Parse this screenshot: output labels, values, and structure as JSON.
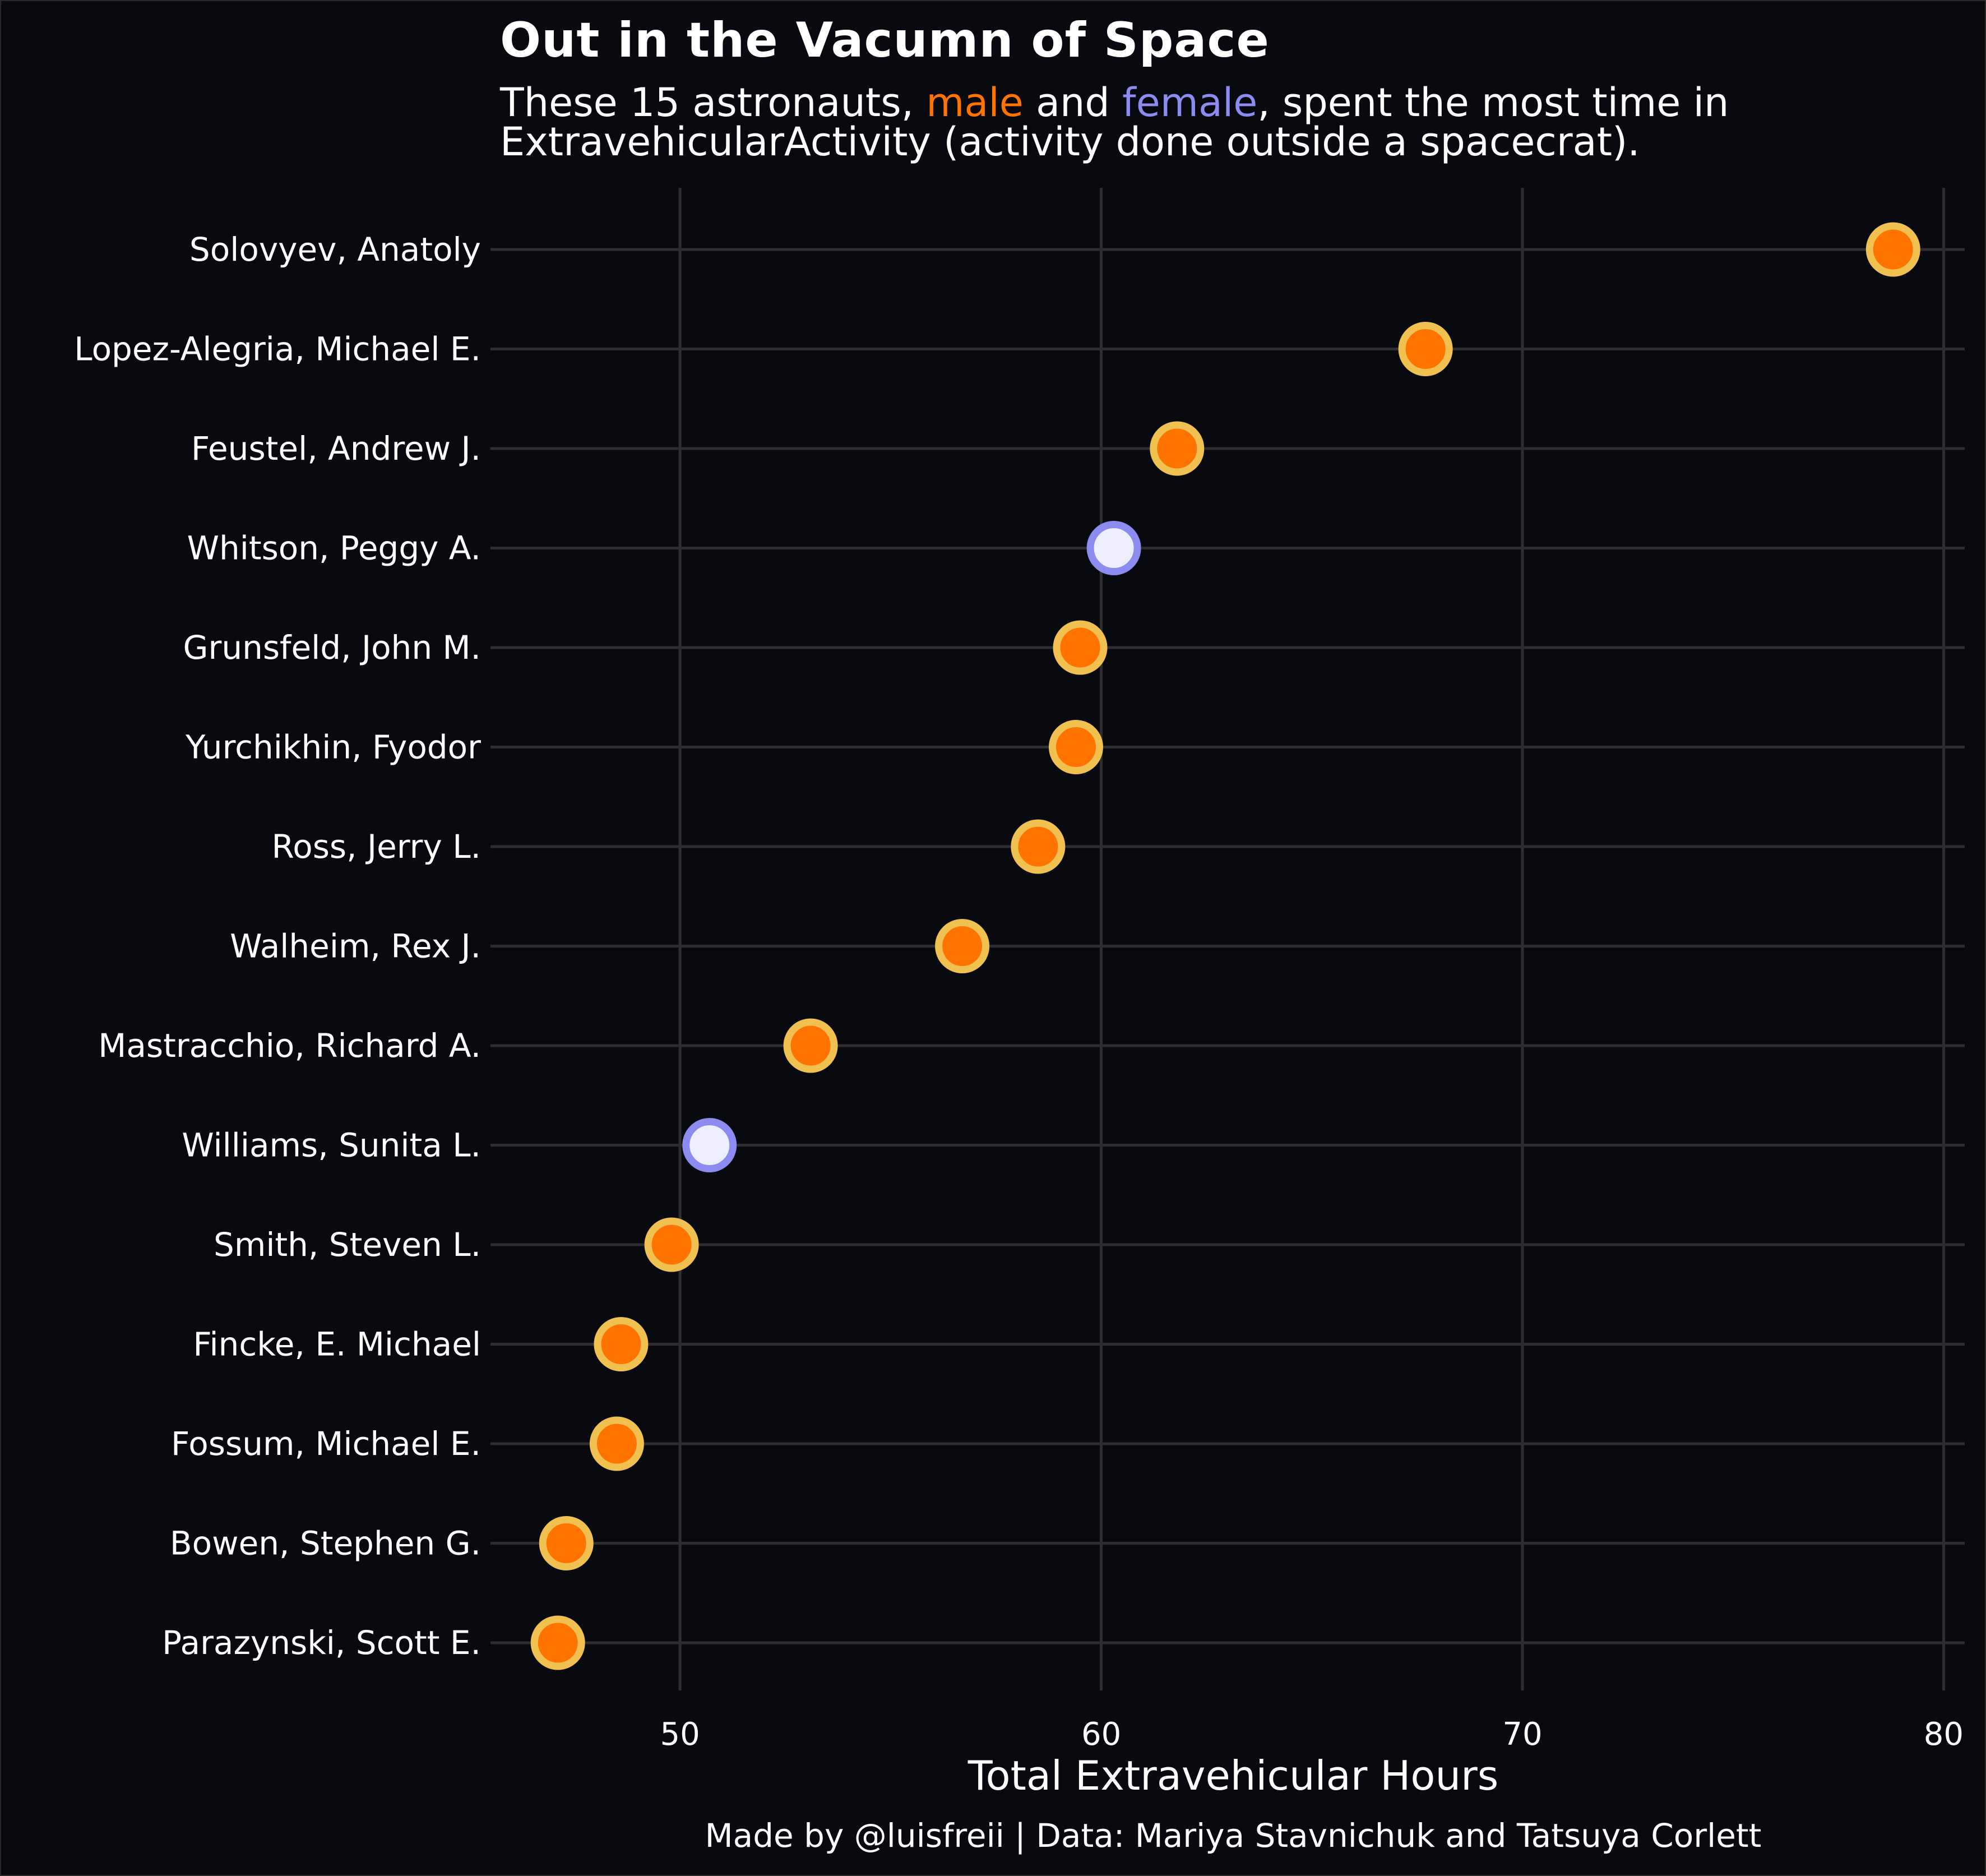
{
  "chart_data": {
    "type": "scatter",
    "title": "Out in the Vacumn of Space",
    "subtitle": {
      "part1": "These 15 astronauts, ",
      "male_word": "male",
      "part2": " and ",
      "female_word": "female",
      "part3": ", spent the most time in ExtravehicularActivity (activity done outside a spacecrat)."
    },
    "xlabel": "Total Extravehicular Hours",
    "ylabel": "",
    "xlim": [
      45.5,
      80.5
    ],
    "xticks": [
      50,
      60,
      70,
      80
    ],
    "grid": true,
    "colors": {
      "male": "#ff7300",
      "male_outline": "#f0c050",
      "female": "#eeeeff",
      "female_outline": "#8b8bf0",
      "background": "#080a10",
      "grid": "#2e2e2e"
    },
    "points": [
      {
        "name": "Solovyev, Anatoly",
        "hours": 78.8,
        "sex": "male"
      },
      {
        "name": "Lopez-Alegria, Michael E.",
        "hours": 67.7,
        "sex": "male"
      },
      {
        "name": "Feustel, Andrew J.",
        "hours": 61.8,
        "sex": "male"
      },
      {
        "name": "Whitson, Peggy A.",
        "hours": 60.3,
        "sex": "female"
      },
      {
        "name": "Grunsfeld, John M.",
        "hours": 59.5,
        "sex": "male"
      },
      {
        "name": "Yurchikhin, Fyodor",
        "hours": 59.4,
        "sex": "male"
      },
      {
        "name": "Ross, Jerry L.",
        "hours": 58.5,
        "sex": "male"
      },
      {
        "name": "Walheim, Rex J.",
        "hours": 56.7,
        "sex": "male"
      },
      {
        "name": "Mastracchio, Richard A.",
        "hours": 53.1,
        "sex": "male"
      },
      {
        "name": "Williams, Sunita L.",
        "hours": 50.7,
        "sex": "female"
      },
      {
        "name": "Smith, Steven L.",
        "hours": 49.8,
        "sex": "male"
      },
      {
        "name": "Fincke, E. Michael",
        "hours": 48.6,
        "sex": "male"
      },
      {
        "name": "Fossum, Michael E.",
        "hours": 48.5,
        "sex": "male"
      },
      {
        "name": "Bowen, Stephen G.",
        "hours": 47.3,
        "sex": "male"
      },
      {
        "name": "Parazynski, Scott E.",
        "hours": 47.1,
        "sex": "male"
      }
    ]
  },
  "caption": "Made by @luisfreii | Data:  Mariya Stavnichuk and Tatsuya Corlett"
}
